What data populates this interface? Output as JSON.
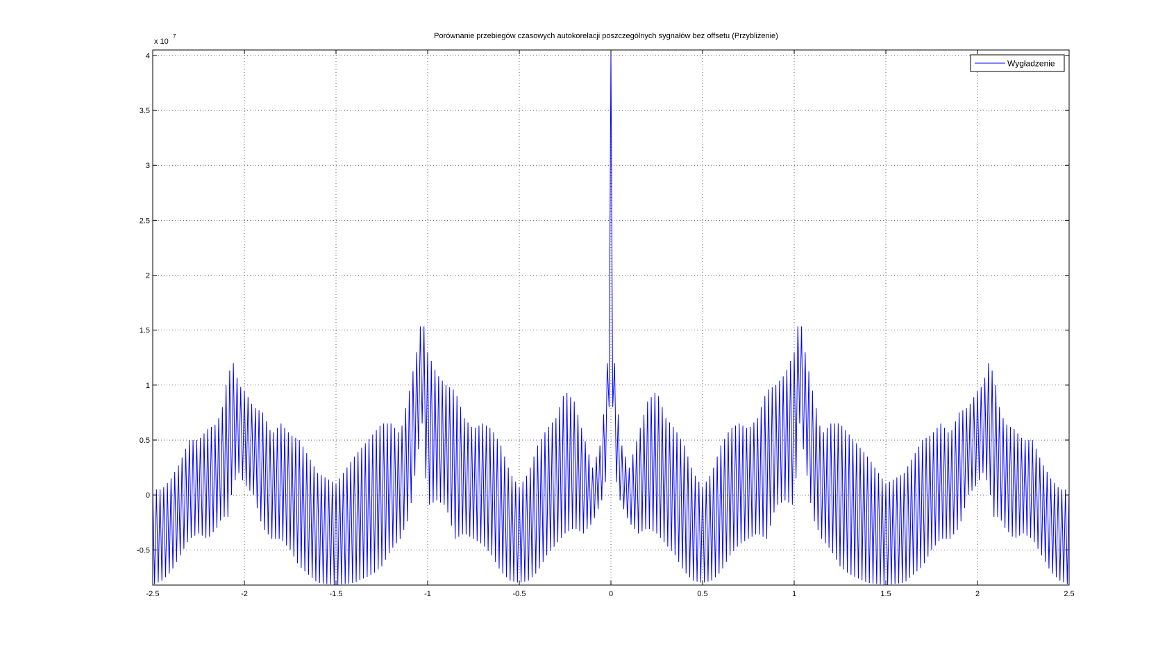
{
  "figure": {
    "background": "#ffffff"
  },
  "chart_data": {
    "type": "line",
    "title": "Porównanie przebiegów czasowych autokorelacji poszczególnych sygnałów bez offsetu (Przybliżenie)",
    "xlabel": "",
    "ylabel": "",
    "y_multiplier_label": "x 10",
    "y_multiplier_exponent": "7",
    "xlim": [
      -2.5,
      2.5
    ],
    "ylim": [
      -0.82,
      4.05
    ],
    "y_scale": 10000000,
    "grid": true,
    "legend_position": "top-right",
    "xticks": [
      -2.5,
      -2,
      -1.5,
      -1,
      -0.5,
      0,
      0.5,
      1,
      1.5,
      2,
      2.5
    ],
    "xtick_labels": [
      "-2.5",
      "-2",
      "-1.5",
      "-1",
      "-0.5",
      "0",
      "0.5",
      "1",
      "1.5",
      "2",
      "2.5"
    ],
    "yticks": [
      -0.5,
      0,
      0.5,
      1,
      1.5,
      2,
      2.5,
      3,
      3.5,
      4
    ],
    "ytick_labels": [
      "-0.5",
      "0",
      "0.5",
      "1",
      "1.5",
      "2",
      "2.5",
      "3",
      "3.5",
      "4"
    ],
    "series": [
      {
        "name": "Wygładzenie",
        "color": "#0000ff",
        "oscillation_half_period": 0.01,
        "upper_envelope": {
          "x": [
            0,
            0.01,
            0.02,
            0.05,
            0.1,
            0.15,
            0.2,
            0.25,
            0.3,
            0.35,
            0.4,
            0.45,
            0.5,
            0.55,
            0.6,
            0.65,
            0.7,
            0.75,
            0.8,
            0.85,
            0.9,
            0.95,
            1.0,
            1.03,
            1.06,
            1.1,
            1.15,
            1.2,
            1.25,
            1.3,
            1.4,
            1.5,
            1.6,
            1.7,
            1.75,
            1.8,
            1.85,
            1.9,
            1.95,
            2.0,
            2.03,
            2.06,
            2.09,
            2.12,
            2.15,
            2.2,
            2.25,
            2.3,
            2.35,
            2.4,
            2.45,
            2.5
          ],
          "y": [
            4.05,
            2.3,
            1.2,
            0.5,
            0.25,
            0.55,
            0.85,
            0.95,
            0.7,
            0.6,
            0.45,
            0.2,
            0.07,
            0.2,
            0.45,
            0.6,
            0.65,
            0.6,
            0.7,
            0.95,
            1.0,
            1.1,
            1.3,
            1.65,
            1.3,
            0.95,
            0.55,
            0.65,
            0.65,
            0.55,
            0.35,
            0.1,
            0.2,
            0.5,
            0.55,
            0.65,
            0.55,
            0.75,
            0.8,
            0.95,
            1.0,
            1.2,
            1.1,
            0.8,
            0.65,
            0.6,
            0.5,
            0.5,
            0.3,
            0.15,
            0.05,
            0.05
          ]
        },
        "lower_envelope": {
          "x": [
            0,
            0.01,
            0.02,
            0.05,
            0.1,
            0.15,
            0.2,
            0.25,
            0.3,
            0.35,
            0.4,
            0.45,
            0.5,
            0.55,
            0.6,
            0.65,
            0.7,
            0.75,
            0.8,
            0.85,
            0.9,
            0.95,
            1.0,
            1.03,
            1.06,
            1.1,
            1.15,
            1.2,
            1.25,
            1.3,
            1.4,
            1.5,
            1.6,
            1.7,
            1.75,
            1.8,
            1.85,
            1.9,
            1.95,
            2.0,
            2.03,
            2.06,
            2.09,
            2.12,
            2.15,
            2.2,
            2.25,
            2.3,
            2.35,
            2.4,
            2.45,
            2.5
          ],
          "y": [
            3.6,
            0.8,
            0.2,
            -0.05,
            -0.25,
            -0.35,
            -0.3,
            -0.35,
            -0.45,
            -0.55,
            -0.7,
            -0.78,
            -0.8,
            -0.78,
            -0.7,
            -0.55,
            -0.45,
            -0.4,
            -0.35,
            -0.4,
            -0.1,
            -0.05,
            -0.1,
            0.65,
            0.3,
            -0.2,
            -0.4,
            -0.5,
            -0.65,
            -0.72,
            -0.8,
            -0.82,
            -0.8,
            -0.65,
            -0.5,
            -0.4,
            -0.4,
            -0.3,
            0.0,
            0.1,
            0.2,
            0.1,
            -0.2,
            -0.2,
            -0.3,
            -0.4,
            -0.35,
            -0.4,
            -0.55,
            -0.7,
            -0.78,
            -0.82
          ]
        }
      }
    ]
  }
}
